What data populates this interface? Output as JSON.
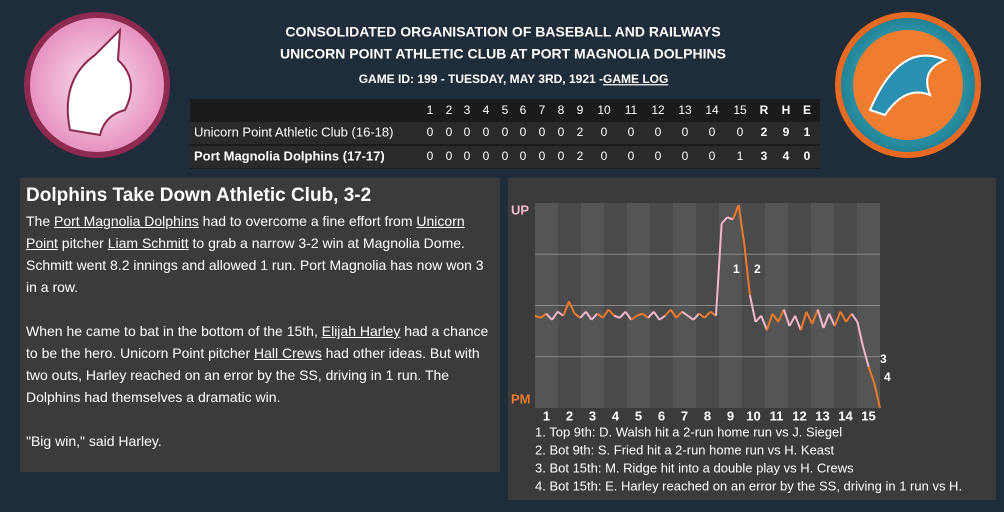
{
  "header": {
    "title_line1": "CONSOLIDATED ORGANISATION OF BASEBALL AND RAILWAYS",
    "title_line2": "UNICORN POINT ATHLETIC CLUB AT PORT MAGNOLIA DOLPHINS",
    "game_line": "GAME ID: 199 - TUESDAY, MAY 3RD, 1921 - ",
    "game_log_link": "GAME LOG"
  },
  "scoreboard": {
    "columns": [
      "1",
      "2",
      "3",
      "4",
      "5",
      "6",
      "7",
      "8",
      "9",
      "10",
      "11",
      "12",
      "13",
      "14",
      "15",
      "R",
      "H",
      "E"
    ],
    "rows": [
      [
        "Unicorn Point Athletic Club (16-18)",
        "0",
        "0",
        "0",
        "0",
        "0",
        "0",
        "0",
        "0",
        "2",
        "0",
        "0",
        "0",
        "0",
        "0",
        "0",
        "2",
        "9",
        "1"
      ],
      [
        "Port Magnolia Dolphins (17-17)",
        "0",
        "0",
        "0",
        "0",
        "0",
        "0",
        "0",
        "0",
        "2",
        "0",
        "0",
        "0",
        "0",
        "0",
        "1",
        "3",
        "4",
        "0"
      ]
    ]
  },
  "article": {
    "title": "Dolphins Take Down Athletic Club, 3-2",
    "paragraphs": [
      [
        {
          "text": "The "
        },
        {
          "text": "Port Magnolia Dolphins",
          "link": true
        },
        {
          "text": " had to overcome a fine effort from "
        },
        {
          "text": "Unicorn Point",
          "link": true
        },
        {
          "text": " pitcher "
        },
        {
          "text": "Liam Schmitt",
          "link": true
        },
        {
          "text": " to grab a narrow 3-2 win at Magnolia Dome. Schmitt went 8.2 innings and allowed 1 run. Port Magnolia has now won 3 in a row."
        }
      ],
      [
        {
          "text": "When he came to bat in the bottom of the 15th, "
        },
        {
          "text": "Elijah Harley",
          "link": true
        },
        {
          "text": " had a chance to be the hero. Unicorn Point pitcher "
        },
        {
          "text": "Hall Crews",
          "link": true
        },
        {
          "text": " had other ideas. But with two outs, Harley reached on an error by the SS, driving in 1 run. The Dolphins had themselves a dramatic win."
        }
      ],
      [
        {
          "text": "\"Big win,\" said Harley."
        }
      ]
    ]
  },
  "win_chart": {
    "top_label": "UP",
    "bottom_label": "PM",
    "ylim": [
      0,
      100
    ],
    "innings": [
      "1",
      "2",
      "3",
      "4",
      "5",
      "6",
      "7",
      "8",
      "9",
      "10",
      "11",
      "12",
      "13",
      "14",
      "15"
    ],
    "values": [
      45,
      44,
      46,
      43,
      47,
      45,
      52,
      46,
      44,
      47,
      43,
      46,
      44,
      48,
      45,
      44,
      47,
      43,
      45,
      46,
      44,
      47,
      43,
      45,
      48,
      44,
      47,
      45,
      43,
      46,
      44,
      47,
      45,
      90,
      93,
      92,
      99,
      80,
      55,
      42,
      45,
      38,
      46,
      42,
      48,
      40,
      45,
      38,
      47,
      41,
      48,
      39,
      46,
      40,
      47,
      42,
      46,
      42,
      30,
      20,
      12,
      0
    ],
    "annotations": [
      "1",
      "2",
      "3",
      "4"
    ],
    "notes": [
      "1. Top 9th: D. Walsh hit a 2-run home run vs J. Siegel",
      "2. Bot 9th: S. Fried hit a 2-run home run vs H. Keast",
      "3. Bot 15th: M. Ridge hit into a double play vs H. Crews",
      "4. Bot 15th: E. Harley reached on an error by the SS, driving in 1 run vs H."
    ]
  }
}
